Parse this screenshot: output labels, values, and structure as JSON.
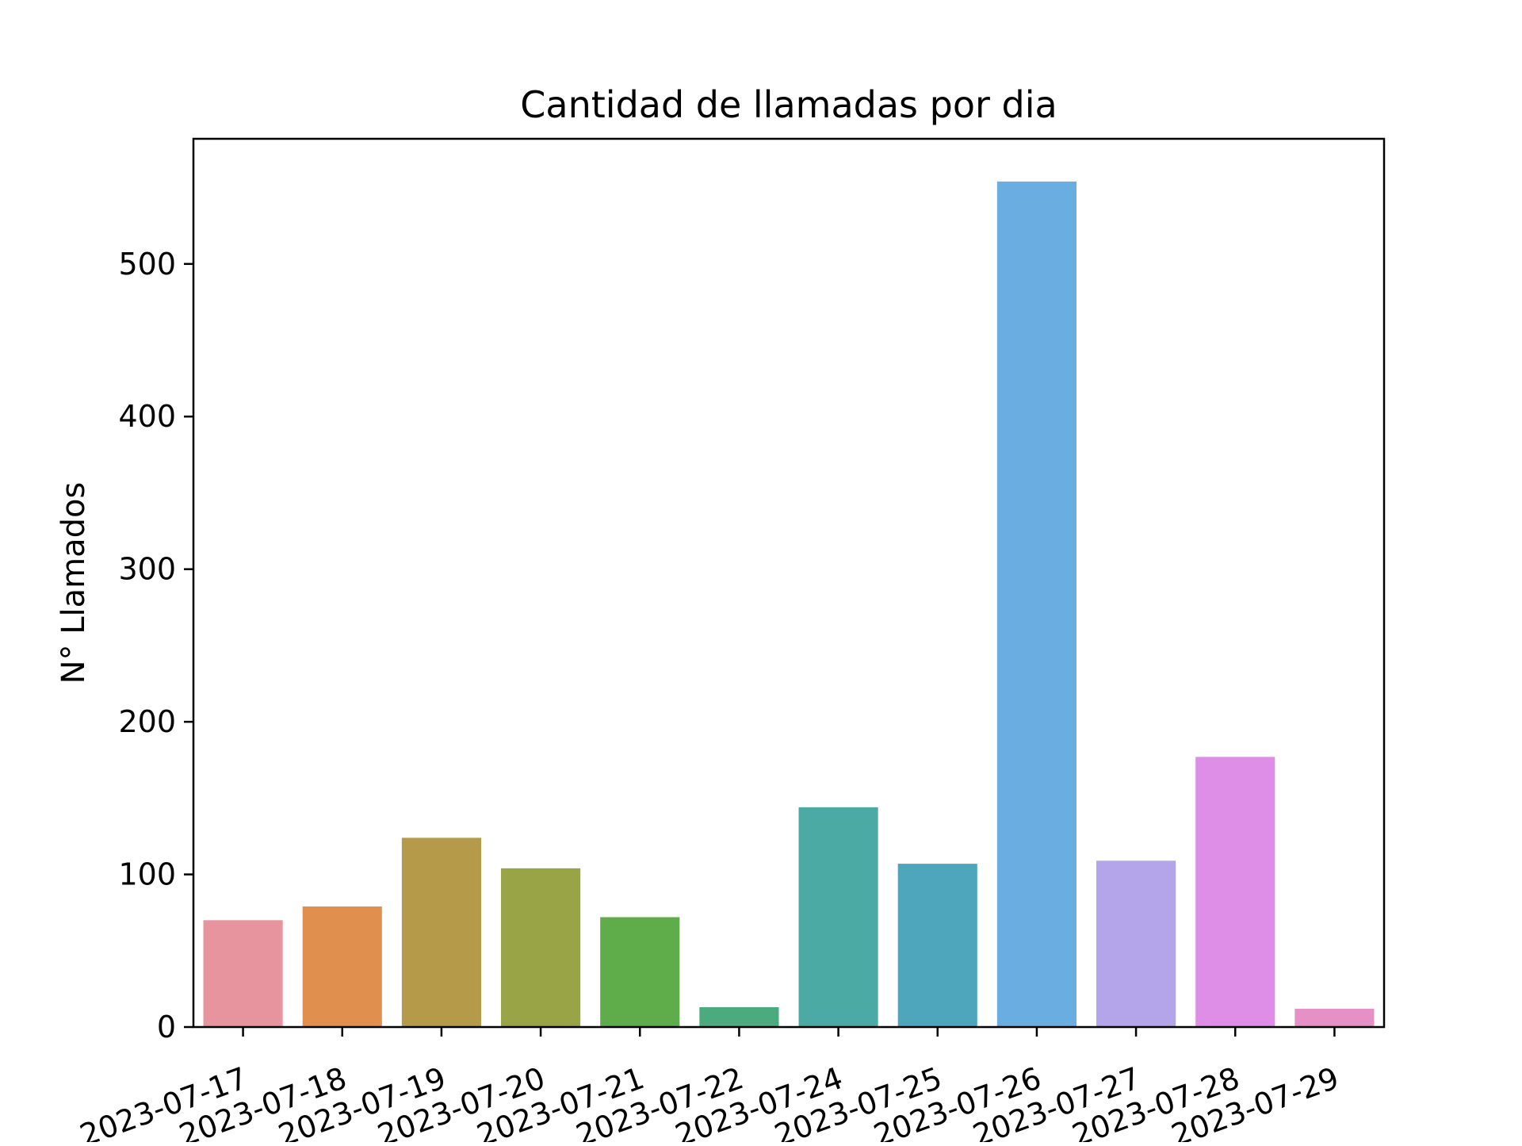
{
  "chart_data": {
    "type": "bar",
    "title": "Cantidad de llamadas por dia",
    "xlabel": "",
    "ylabel": "N° Llamados",
    "categories": [
      "2023-07-17",
      "2023-07-18",
      "2023-07-19",
      "2023-07-20",
      "2023-07-21",
      "2023-07-22",
      "2023-07-24",
      "2023-07-25",
      "2023-07-26",
      "2023-07-27",
      "2023-07-28",
      "2023-07-29"
    ],
    "values": [
      70,
      79,
      124,
      104,
      72,
      13,
      144,
      107,
      554,
      109,
      177,
      12
    ],
    "colors": [
      "#e8949f",
      "#e08f4f",
      "#b59a4a",
      "#99a447",
      "#5ead4a",
      "#4bab7f",
      "#4baaa3",
      "#4ea6bd",
      "#6aade0",
      "#b4a4ea",
      "#de8ee6",
      "#e691c6"
    ],
    "ylim": [
      0,
      582
    ],
    "yticks": [
      0,
      100,
      200,
      300,
      400,
      500
    ],
    "grid": false,
    "legend": false
  }
}
